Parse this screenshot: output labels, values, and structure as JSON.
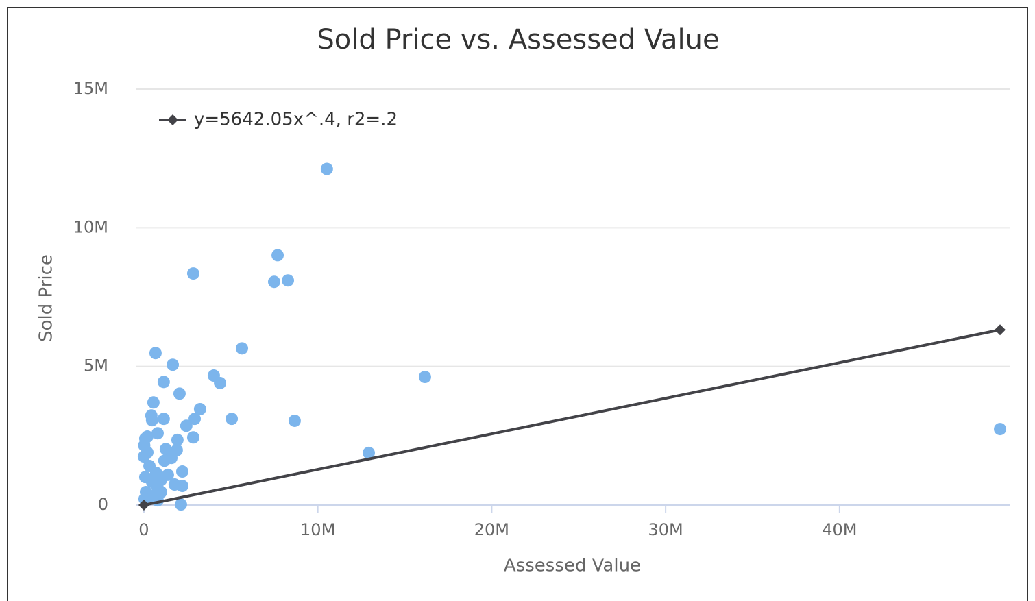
{
  "chart_data": {
    "type": "scatter",
    "title": "Sold Price vs. Assessed Value",
    "x_label": "Assessed Value",
    "y_label": "Sold Price",
    "xlim": [
      -470000,
      49780000
    ],
    "ylim": [
      0,
      15000000
    ],
    "xticks": [
      0,
      {
        "value": 10000000,
        "label": "10M"
      },
      {
        "value": 20000000,
        "label": "20M"
      },
      {
        "value": 30000000,
        "label": "30M"
      },
      {
        "value": 40000000,
        "label": "40M"
      }
    ],
    "yticks": [
      0,
      {
        "value": 5000000,
        "label": "5M"
      },
      {
        "value": 10000000,
        "label": "10M"
      },
      {
        "value": 15000000,
        "label": "15M"
      }
    ],
    "grid": true,
    "legend": "top-left",
    "series": [
      {
        "color": "#7cb5ec",
        "x": [
          10520000,
          7690000,
          7490000,
          8280000,
          2840000,
          5640000,
          670000,
          1660000,
          16160000,
          4020000,
          4380000,
          1140000,
          2050000,
          550000,
          3230000,
          430000,
          470000,
          1140000,
          2920000,
          5050000,
          8670000,
          2440000,
          49230000,
          790000,
          200000,
          2840000,
          80000,
          1930000,
          20000,
          1260000,
          1890000,
          200000,
          12930000,
          0,
          1580000,
          1180000,
          320000,
          2210000,
          710000,
          1380000,
          80000,
          990000,
          470000,
          1770000,
          2210000,
          790000,
          120000,
          990000,
          390000,
          40000,
          790000,
          2130000
        ],
        "values": [
          12120000,
          9010000,
          8050000,
          8100000,
          8350000,
          5650000,
          5480000,
          5060000,
          4620000,
          4670000,
          4400000,
          4440000,
          4020000,
          3700000,
          3460000,
          3230000,
          3060000,
          3110000,
          3110000,
          3110000,
          3040000,
          2860000,
          2740000,
          2590000,
          2470000,
          2440000,
          2400000,
          2350000,
          2150000,
          2020000,
          1980000,
          1900000,
          1880000,
          1750000,
          1700000,
          1600000,
          1410000,
          1210000,
          1160000,
          1090000,
          1010000,
          910000,
          840000,
          740000,
          690000,
          620000,
          470000,
          470000,
          320000,
          220000,
          170000,
          20000
        ]
      },
      {
        "name": "y=5642.05x^.4, r2=.2",
        "color": "#434348",
        "type": "line",
        "x": [
          0,
          49230000
        ],
        "values": [
          0,
          6320000
        ]
      }
    ]
  }
}
